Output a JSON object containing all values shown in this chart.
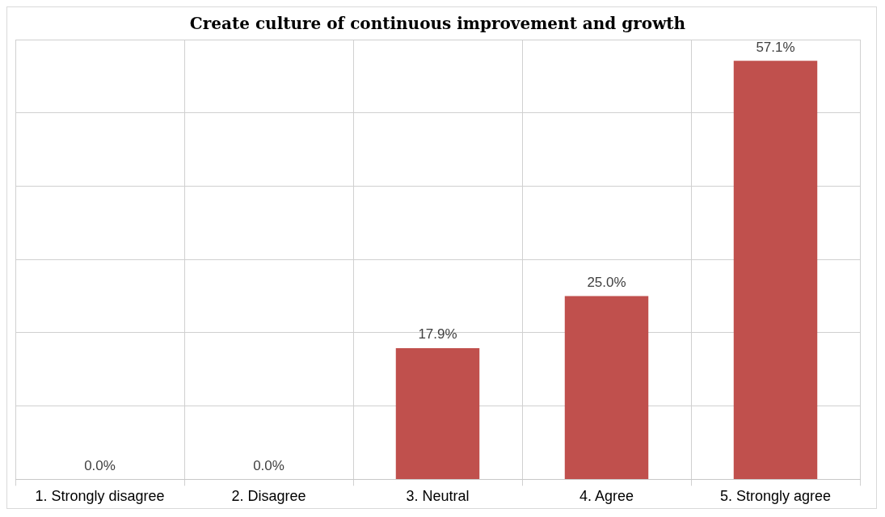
{
  "chart_data": {
    "type": "bar",
    "title": "Create culture of continuous improvement and growth",
    "categories": [
      "1. Strongly disagree",
      "2. Disagree",
      "3. Neutral",
      "4. Agree",
      "5. Strongly agree"
    ],
    "values": [
      0.0,
      0.0,
      17.9,
      25.0,
      57.1
    ],
    "color": "#c0504d",
    "value_labels": [
      "0.0%",
      "0.0%",
      "17.9%",
      "25.0%",
      "57.1%"
    ],
    "ylim": [
      0,
      60
    ],
    "yticks": [
      {
        "value": 0,
        "label": null
      },
      {
        "value": 10,
        "label": null
      },
      {
        "value": 20,
        "label": null
      },
      {
        "value": 30,
        "label": null
      },
      {
        "value": 40,
        "label": null
      },
      {
        "value": 50,
        "label": null
      },
      {
        "value": 60,
        "label": null
      }
    ],
    "tick_labels": "x",
    "grid": true,
    "legend": false
  }
}
